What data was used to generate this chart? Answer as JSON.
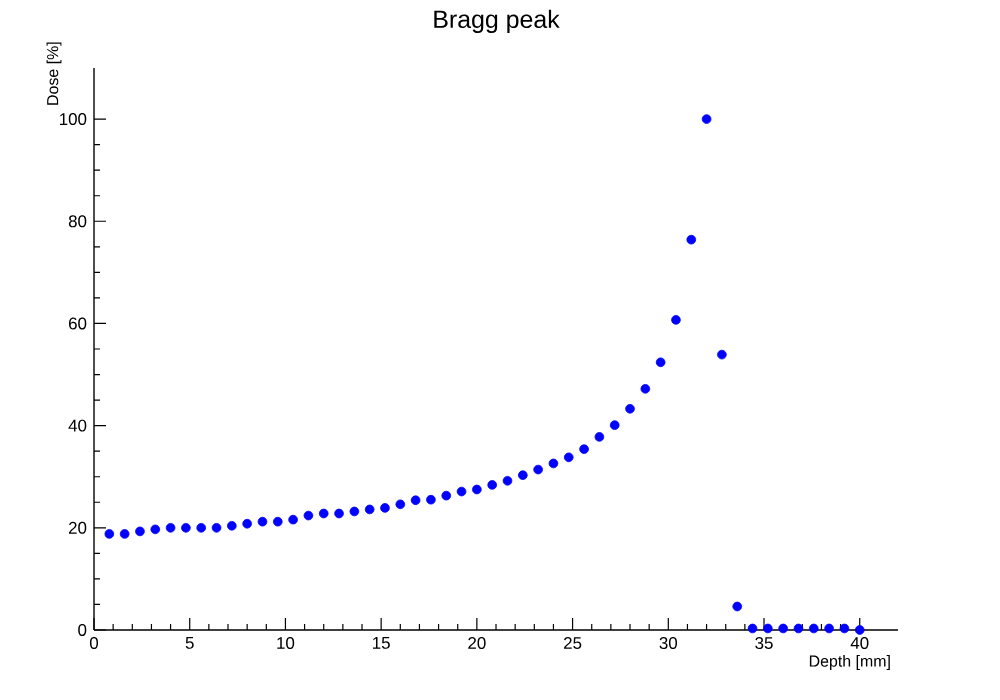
{
  "chart_data": {
    "type": "scatter",
    "title": "Bragg peak",
    "xlabel": "Depth [mm]",
    "ylabel": "Dose [%]",
    "marker": "circle",
    "grid": false,
    "xlim": [
      0,
      42
    ],
    "ylim": [
      0,
      110
    ],
    "xticks": [
      0,
      5,
      10,
      15,
      20,
      25,
      30,
      35,
      40
    ],
    "yticks": [
      0,
      20,
      40,
      60,
      80,
      100
    ],
    "series": [
      {
        "color": "#0000ff",
        "x": [
          0.8,
          1.6,
          2.4,
          3.2,
          4.0,
          4.8,
          5.6,
          6.4,
          7.2,
          8.0,
          8.8,
          9.6,
          10.4,
          11.2,
          12.0,
          12.8,
          13.6,
          14.4,
          15.2,
          16.0,
          16.8,
          17.6,
          18.4,
          19.2,
          20.0,
          20.8,
          21.6,
          22.4,
          23.2,
          24.0,
          24.8,
          25.6,
          26.4,
          27.2,
          28.0,
          28.8,
          29.6,
          30.4,
          31.2,
          32.0,
          32.8,
          33.6,
          34.4,
          35.2,
          36.0,
          36.8,
          37.6,
          38.4,
          39.2,
          40.0
        ],
        "values": [
          18.8,
          18.8,
          19.3,
          19.7,
          20.0,
          20.0,
          20.0,
          20.0,
          20.4,
          20.8,
          21.2,
          21.2,
          21.6,
          22.4,
          22.8,
          22.8,
          23.2,
          23.6,
          23.9,
          24.6,
          25.4,
          25.5,
          26.3,
          27.1,
          27.5,
          28.4,
          29.2,
          30.3,
          31.4,
          32.6,
          33.8,
          35.4,
          37.8,
          40.1,
          43.3,
          47.2,
          52.4,
          60.7,
          76.4,
          100,
          53.9,
          4.6,
          0.3,
          0.3,
          0.3,
          0.3,
          0.3,
          0.3,
          0.3,
          0
        ]
      }
    ]
  }
}
